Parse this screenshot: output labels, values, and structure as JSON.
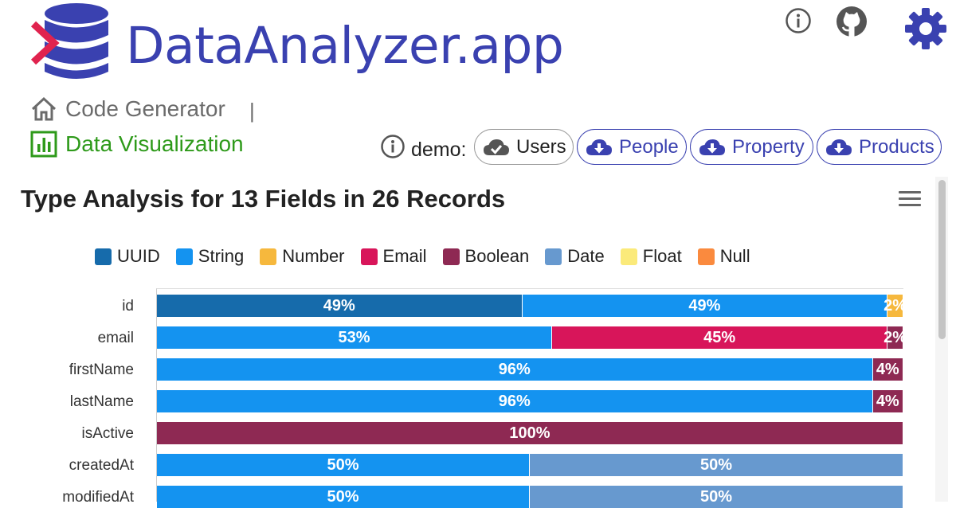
{
  "header": {
    "brand": "DataAnalyzer.app",
    "icons": [
      "info-icon",
      "github-icon",
      "gear-icon"
    ]
  },
  "nav": {
    "home_label": "Code Generator",
    "separator": "|",
    "viz_label": "Data Visualization"
  },
  "demo": {
    "label": "demo:",
    "datasets": [
      {
        "label": "Users",
        "state": "loaded",
        "icon": "cloud-check-icon"
      },
      {
        "label": "People",
        "state": "download",
        "icon": "cloud-download-icon"
      },
      {
        "label": "Property",
        "state": "download",
        "icon": "cloud-download-icon"
      },
      {
        "label": "Products",
        "state": "download",
        "icon": "cloud-download-icon"
      }
    ]
  },
  "colors": {
    "brand": "#3a41b0",
    "nav_active": "#2e9a1a",
    "UUID": "#166bab",
    "String": "#1493f0",
    "Number": "#f6b83d",
    "Email": "#d8155a",
    "Boolean": "#8e2953",
    "Date": "#6799cf",
    "Float": "#fbea7a",
    "Null": "#fa8a3e"
  },
  "chart_data": {
    "type": "bar",
    "orientation": "horizontal",
    "stacked": true,
    "percent": true,
    "title": "Type Analysis for 13 Fields in 26 Records",
    "legend": [
      "UUID",
      "String",
      "Number",
      "Email",
      "Boolean",
      "Date",
      "Float",
      "Null"
    ],
    "legend_position": "top",
    "categories": [
      "id",
      "email",
      "firstName",
      "lastName",
      "isActive",
      "createdAt",
      "modifiedAt"
    ],
    "rows": [
      {
        "field": "id",
        "segments": [
          {
            "type": "UUID",
            "value": 49
          },
          {
            "type": "String",
            "value": 49
          },
          {
            "type": "Number",
            "value": 2
          }
        ]
      },
      {
        "field": "email",
        "segments": [
          {
            "type": "String",
            "value": 53
          },
          {
            "type": "Email",
            "value": 45
          },
          {
            "type": "Boolean",
            "value": 2
          }
        ]
      },
      {
        "field": "firstName",
        "segments": [
          {
            "type": "String",
            "value": 96
          },
          {
            "type": "Boolean",
            "value": 4
          }
        ]
      },
      {
        "field": "lastName",
        "segments": [
          {
            "type": "String",
            "value": 96
          },
          {
            "type": "Boolean",
            "value": 4
          }
        ]
      },
      {
        "field": "isActive",
        "segments": [
          {
            "type": "Boolean",
            "value": 100
          }
        ]
      },
      {
        "field": "createdAt",
        "segments": [
          {
            "type": "String",
            "value": 50
          },
          {
            "type": "Date",
            "value": 50
          }
        ]
      },
      {
        "field": "modifiedAt",
        "segments": [
          {
            "type": "String",
            "value": 50
          },
          {
            "type": "Date",
            "value": 50
          }
        ]
      }
    ],
    "xlim": [
      0,
      100
    ]
  }
}
